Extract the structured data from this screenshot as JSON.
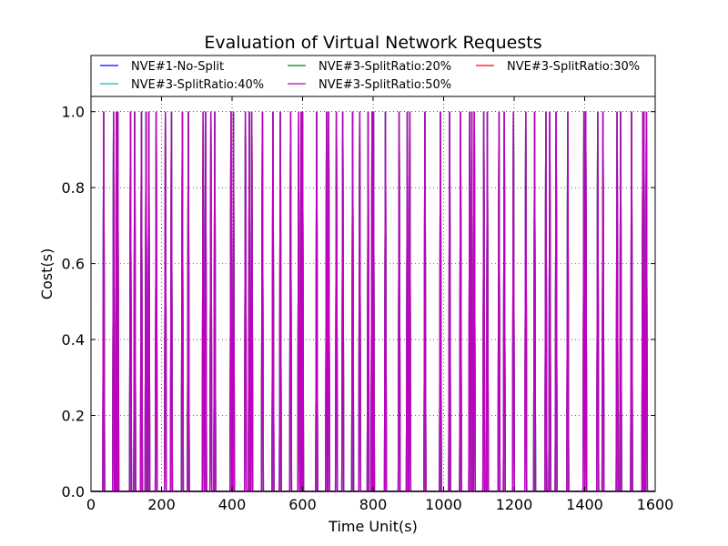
{
  "chart_data": {
    "type": "line",
    "title": "Evaluation of Virtual Network Requests",
    "xlabel": "Time Unit(s)",
    "ylabel": "Cost(s)",
    "xlim": [
      0,
      1600
    ],
    "ylim": [
      0,
      1.04
    ],
    "xticks": [
      0,
      200,
      400,
      600,
      800,
      1000,
      1200,
      1400,
      1600
    ],
    "xtick_labels": [
      "0",
      "200",
      "400",
      "600",
      "800",
      "1000",
      "1200",
      "1400",
      "1600"
    ],
    "yticks": [
      0.0,
      0.2,
      0.4,
      0.6,
      0.8,
      1.0
    ],
    "ytick_labels": [
      "0.0",
      "0.2",
      "0.4",
      "0.6",
      "0.8",
      "1.0"
    ],
    "grid": true,
    "legend_position": "top",
    "series": [
      {
        "name": "NVE#1-No-Split",
        "color": "#0000ff"
      },
      {
        "name": "NVE#3-SplitRatio:20%",
        "color": "#008000"
      },
      {
        "name": "NVE#3-SplitRatio:30%",
        "color": "#ff0000"
      },
      {
        "name": "NVE#3-SplitRatio:40%",
        "color": "#00bfbf"
      },
      {
        "name": "NVE#3-SplitRatio:50%",
        "color": "#bf00bf"
      }
    ],
    "spike_value": 1.0,
    "baseline_value": 0.0,
    "spike_x": [
      36,
      64,
      72,
      76,
      112,
      124,
      143,
      156,
      164,
      185,
      211,
      228,
      259,
      276,
      318,
      325,
      340,
      351,
      397,
      404,
      438,
      449,
      456,
      486,
      516,
      537,
      566,
      589,
      596,
      600,
      640,
      668,
      674,
      696,
      714,
      742,
      762,
      786,
      797,
      801,
      835,
      874,
      897,
      904,
      947,
      991,
      1017,
      1048,
      1074,
      1080,
      1087,
      1114,
      1124,
      1157,
      1172,
      1198,
      1233,
      1258,
      1290,
      1301,
      1319,
      1352,
      1398,
      1403,
      1437,
      1452,
      1492,
      1502,
      1533,
      1565,
      1568,
      1575
    ]
  }
}
